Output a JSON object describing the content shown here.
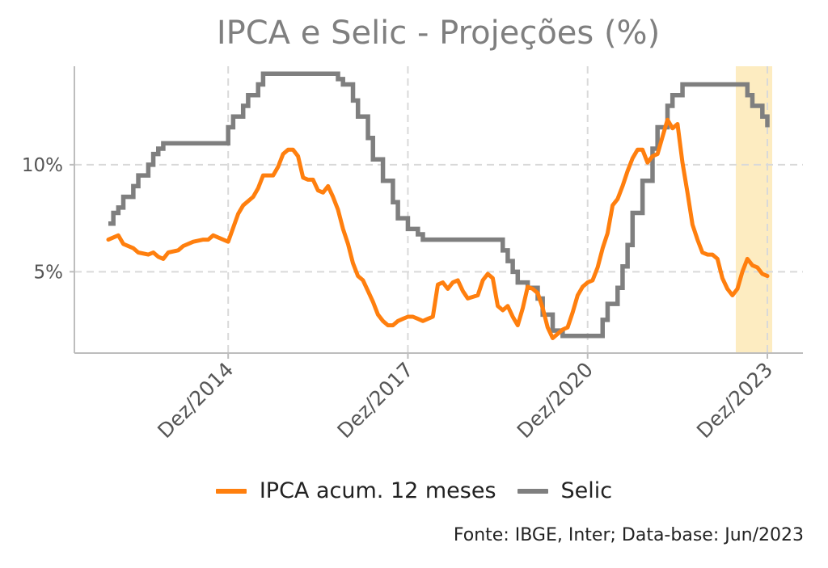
{
  "chart_data": {
    "type": "line",
    "title": "IPCA e Selic - Projeções (%)",
    "xlabel": "",
    "ylabel": "",
    "x_range": [
      "2012-12",
      "2023-12"
    ],
    "ylim": [
      1.2,
      14.6
    ],
    "x_ticks": [
      {
        "date": "2014-12",
        "label": "Dez/2014"
      },
      {
        "date": "2017-12",
        "label": "Dez/2017"
      },
      {
        "date": "2020-12",
        "label": "Dez/2020"
      },
      {
        "date": "2023-12",
        "label": "Dez/2023"
      }
    ],
    "y_ticks": [
      {
        "value": 5,
        "label": "5%"
      },
      {
        "value": 10,
        "label": "10%"
      }
    ],
    "grid": true,
    "legend_position": "bottom",
    "highlight": {
      "start": "2023-06",
      "end": "2023-12",
      "color": "#fdecc1"
    },
    "series": [
      {
        "name": "IPCA acum. 12 meses",
        "color": "#ff7f0e",
        "points": [
          [
            "2012-12",
            6.5
          ],
          [
            "2013-02",
            6.7
          ],
          [
            "2013-03",
            6.3
          ],
          [
            "2013-05",
            6.1
          ],
          [
            "2013-06",
            5.9
          ],
          [
            "2013-08",
            5.8
          ],
          [
            "2013-09",
            5.9
          ],
          [
            "2013-10",
            5.7
          ],
          [
            "2013-11",
            5.6
          ],
          [
            "2013-12",
            5.9
          ],
          [
            "2014-02",
            6.0
          ],
          [
            "2014-03",
            6.2
          ],
          [
            "2014-05",
            6.4
          ],
          [
            "2014-07",
            6.5
          ],
          [
            "2014-08",
            6.5
          ],
          [
            "2014-09",
            6.7
          ],
          [
            "2014-10",
            6.6
          ],
          [
            "2014-12",
            6.4
          ],
          [
            "2015-02",
            7.7
          ],
          [
            "2015-03",
            8.1
          ],
          [
            "2015-05",
            8.5
          ],
          [
            "2015-06",
            8.9
          ],
          [
            "2015-07",
            9.5
          ],
          [
            "2015-09",
            9.5
          ],
          [
            "2015-10",
            9.9
          ],
          [
            "2015-11",
            10.5
          ],
          [
            "2015-12",
            10.7
          ],
          [
            "2016-01",
            10.7
          ],
          [
            "2016-02",
            10.4
          ],
          [
            "2016-03",
            9.4
          ],
          [
            "2016-04",
            9.3
          ],
          [
            "2016-05",
            9.3
          ],
          [
            "2016-06",
            8.8
          ],
          [
            "2016-07",
            8.7
          ],
          [
            "2016-08",
            9.0
          ],
          [
            "2016-09",
            8.5
          ],
          [
            "2016-10",
            7.9
          ],
          [
            "2016-11",
            7.0
          ],
          [
            "2016-12",
            6.3
          ],
          [
            "2017-01",
            5.4
          ],
          [
            "2017-02",
            4.8
          ],
          [
            "2017-03",
            4.6
          ],
          [
            "2017-04",
            4.1
          ],
          [
            "2017-05",
            3.6
          ],
          [
            "2017-06",
            3.0
          ],
          [
            "2017-07",
            2.7
          ],
          [
            "2017-08",
            2.5
          ],
          [
            "2017-09",
            2.5
          ],
          [
            "2017-10",
            2.7
          ],
          [
            "2017-11",
            2.8
          ],
          [
            "2017-12",
            2.9
          ],
          [
            "2018-01",
            2.9
          ],
          [
            "2018-02",
            2.8
          ],
          [
            "2018-03",
            2.7
          ],
          [
            "2018-04",
            2.8
          ],
          [
            "2018-05",
            2.9
          ],
          [
            "2018-06",
            4.4
          ],
          [
            "2018-07",
            4.5
          ],
          [
            "2018-08",
            4.2
          ],
          [
            "2018-09",
            4.5
          ],
          [
            "2018-10",
            4.6
          ],
          [
            "2018-11",
            4.1
          ],
          [
            "2018-12",
            3.75
          ],
          [
            "2019-02",
            3.9
          ],
          [
            "2019-03",
            4.6
          ],
          [
            "2019-04",
            4.9
          ],
          [
            "2019-05",
            4.7
          ],
          [
            "2019-06",
            3.4
          ],
          [
            "2019-07",
            3.2
          ],
          [
            "2019-08",
            3.4
          ],
          [
            "2019-09",
            2.9
          ],
          [
            "2019-10",
            2.5
          ],
          [
            "2019-11",
            3.3
          ],
          [
            "2019-12",
            4.3
          ],
          [
            "2020-01",
            4.2
          ],
          [
            "2020-02",
            4.0
          ],
          [
            "2020-03",
            3.3
          ],
          [
            "2020-04",
            2.4
          ],
          [
            "2020-05",
            1.9
          ],
          [
            "2020-06",
            2.1
          ],
          [
            "2020-07",
            2.3
          ],
          [
            "2020-08",
            2.4
          ],
          [
            "2020-09",
            3.1
          ],
          [
            "2020-10",
            3.9
          ],
          [
            "2020-11",
            4.3
          ],
          [
            "2020-12",
            4.5
          ],
          [
            "2021-01",
            4.6
          ],
          [
            "2021-02",
            5.2
          ],
          [
            "2021-03",
            6.1
          ],
          [
            "2021-04",
            6.8
          ],
          [
            "2021-05",
            8.1
          ],
          [
            "2021-06",
            8.4
          ],
          [
            "2021-07",
            9.0
          ],
          [
            "2021-08",
            9.7
          ],
          [
            "2021-09",
            10.3
          ],
          [
            "2021-10",
            10.7
          ],
          [
            "2021-11",
            10.7
          ],
          [
            "2021-12",
            10.1
          ],
          [
            "2022-01",
            10.4
          ],
          [
            "2022-02",
            10.5
          ],
          [
            "2022-03",
            11.3
          ],
          [
            "2022-04",
            12.1
          ],
          [
            "2022-05",
            11.7
          ],
          [
            "2022-06",
            11.9
          ],
          [
            "2022-07",
            10.1
          ],
          [
            "2022-08",
            8.7
          ],
          [
            "2022-09",
            7.2
          ],
          [
            "2022-10",
            6.5
          ],
          [
            "2022-11",
            5.9
          ],
          [
            "2022-12",
            5.8
          ],
          [
            "2023-01",
            5.8
          ],
          [
            "2023-02",
            5.6
          ],
          [
            "2023-03",
            4.7
          ],
          [
            "2023-04",
            4.2
          ],
          [
            "2023-05",
            3.9
          ],
          [
            "2023-06",
            4.2
          ],
          [
            "2023-07",
            5.0
          ],
          [
            "2023-08",
            5.6
          ],
          [
            "2023-09",
            5.3
          ],
          [
            "2023-10",
            5.2
          ],
          [
            "2023-11",
            4.9
          ],
          [
            "2023-12",
            4.8
          ]
        ]
      },
      {
        "name": "Selic",
        "color": "#7f7f7f",
        "steps": [
          [
            "2012-12",
            7.25
          ],
          [
            "2013-01",
            7.75
          ],
          [
            "2013-02",
            8.0
          ],
          [
            "2013-03",
            8.5
          ],
          [
            "2013-05",
            9.0
          ],
          [
            "2013-06",
            9.5
          ],
          [
            "2013-08",
            10.0
          ],
          [
            "2013-09",
            10.5
          ],
          [
            "2013-10",
            10.75
          ],
          [
            "2013-11",
            11.0
          ],
          [
            "2014-12",
            11.75
          ],
          [
            "2015-01",
            12.25
          ],
          [
            "2015-03",
            12.75
          ],
          [
            "2015-04",
            13.25
          ],
          [
            "2015-06",
            13.75
          ],
          [
            "2015-07",
            14.25
          ],
          [
            "2016-10",
            14.0
          ],
          [
            "2016-11",
            13.75
          ],
          [
            "2017-01",
            13.0
          ],
          [
            "2017-02",
            12.25
          ],
          [
            "2017-04",
            11.25
          ],
          [
            "2017-05",
            10.25
          ],
          [
            "2017-07",
            9.25
          ],
          [
            "2017-09",
            8.25
          ],
          [
            "2017-10",
            7.5
          ],
          [
            "2017-12",
            7.0
          ],
          [
            "2018-02",
            6.75
          ],
          [
            "2018-03",
            6.5
          ],
          [
            "2019-07",
            6.0
          ],
          [
            "2019-08",
            5.5
          ],
          [
            "2019-09",
            5.0
          ],
          [
            "2019-10",
            4.5
          ],
          [
            "2019-12",
            4.25
          ],
          [
            "2020-02",
            3.75
          ],
          [
            "2020-03",
            3.0
          ],
          [
            "2020-05",
            2.25
          ],
          [
            "2020-07",
            2.0
          ],
          [
            "2021-03",
            2.75
          ],
          [
            "2021-04",
            3.5
          ],
          [
            "2021-06",
            4.25
          ],
          [
            "2021-07",
            5.25
          ],
          [
            "2021-08",
            6.25
          ],
          [
            "2021-09",
            7.75
          ],
          [
            "2021-11",
            9.25
          ],
          [
            "2022-01",
            10.75
          ],
          [
            "2022-02",
            11.75
          ],
          [
            "2022-04",
            12.75
          ],
          [
            "2022-05",
            13.25
          ],
          [
            "2022-07",
            13.75
          ],
          [
            "2023-08",
            13.25
          ],
          [
            "2023-09",
            12.75
          ],
          [
            "2023-11",
            12.25
          ],
          [
            "2023-12",
            11.75
          ]
        ]
      }
    ]
  },
  "source": "Fonte: IBGE, Inter; Data-base: Jun/2023"
}
